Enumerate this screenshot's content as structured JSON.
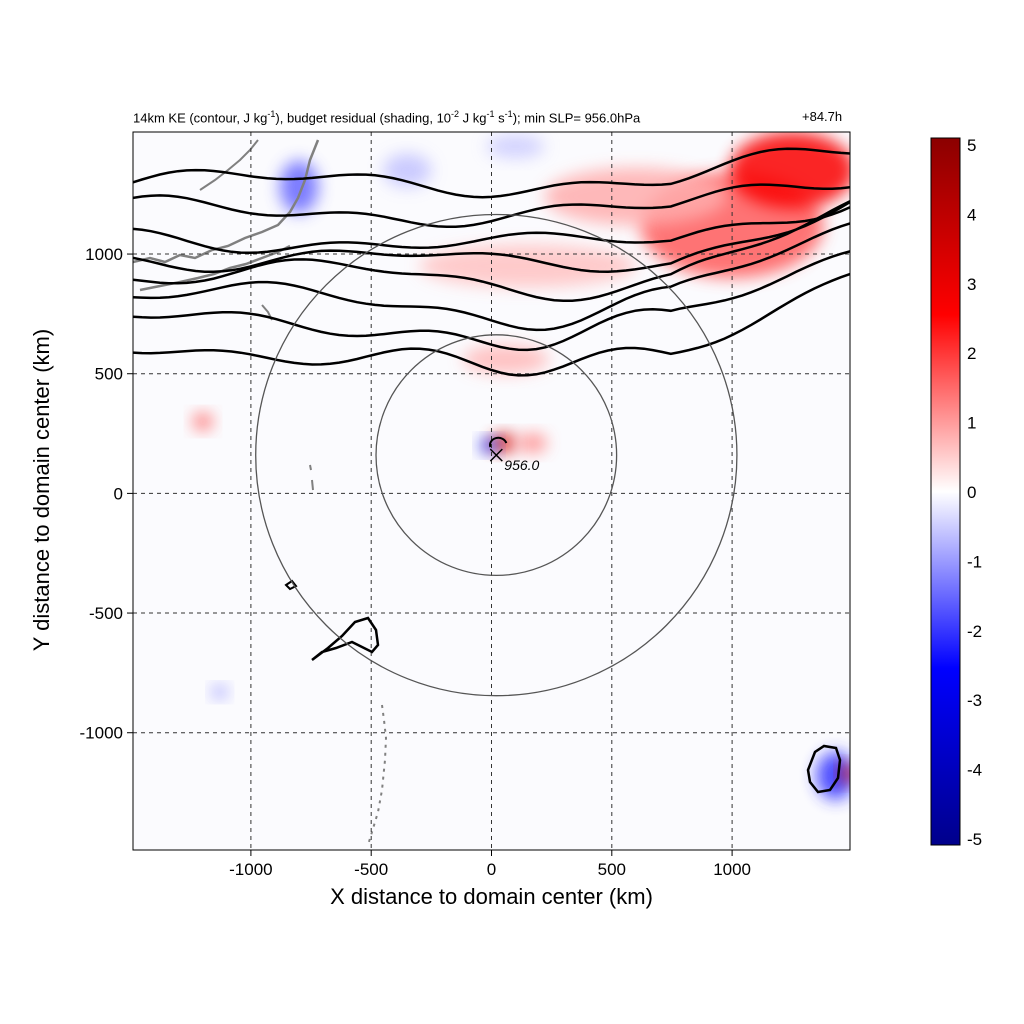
{
  "chart_data": {
    "type": "heatmap",
    "title_parts": {
      "p1": "14km KE (contour, J kg",
      "e1": "-1",
      "p2": "), budget residual (shading, 10",
      "e2": "-2",
      "p3": " J kg",
      "e3": "-1",
      "p4": " s",
      "e4": "-1",
      "p5": "); min SLP= 956.0hPa"
    },
    "time_label": "+84.7h",
    "xlabel": "X distance to domain center (km)",
    "ylabel": "Y distance to domain center (km)",
    "xlim": [
      -1490,
      1490
    ],
    "ylim": [
      -1490,
      1510
    ],
    "xticks": [
      -1000,
      -500,
      0,
      500,
      1000
    ],
    "yticks": [
      -1000,
      -500,
      0,
      500,
      1000
    ],
    "grid": "dashed",
    "colorbar": {
      "min": -5,
      "max": 5,
      "ticks": [
        5,
        4,
        3,
        2,
        1,
        0,
        -1,
        -2,
        -3,
        -4,
        -5
      ],
      "colors": [
        "#00008b",
        "#0000ff",
        "#ffffff",
        "#ff0000",
        "#8b0000"
      ]
    },
    "storm": {
      "center": [
        20,
        160
      ],
      "label": "956.0",
      "range_rings_km": [
        500,
        1000
      ]
    },
    "ke_contours_y": [
      1300,
      1180,
      1060,
      990,
      920,
      820,
      720,
      600
    ],
    "heat_patches": [
      {
        "x": 1000,
        "y": 1120,
        "rx": 380,
        "ry": 220,
        "v": 1.6
      },
      {
        "x": 1250,
        "y": 1350,
        "rx": 260,
        "ry": 160,
        "v": 2.6
      },
      {
        "x": 600,
        "y": 1240,
        "rx": 380,
        "ry": 120,
        "v": 0.8
      },
      {
        "x": 150,
        "y": 950,
        "rx": 450,
        "ry": 90,
        "v": 0.6
      },
      {
        "x": 60,
        "y": 560,
        "rx": 180,
        "ry": 60,
        "v": 0.7
      },
      {
        "x": -1200,
        "y": 300,
        "rx": 40,
        "ry": 35,
        "v": 1.6
      },
      {
        "x": -800,
        "y": 1280,
        "rx": 80,
        "ry": 110,
        "v": -1.5
      },
      {
        "x": -350,
        "y": 1350,
        "rx": 100,
        "ry": 70,
        "v": -0.6
      },
      {
        "x": 100,
        "y": 1450,
        "rx": 120,
        "ry": 50,
        "v": -0.5
      },
      {
        "x": 1430,
        "y": -1180,
        "rx": 80,
        "ry": 100,
        "v": -2.0
      },
      {
        "x": 1480,
        "y": -1170,
        "rx": 30,
        "ry": 40,
        "v": 3.5
      },
      {
        "x": -1130,
        "y": -830,
        "rx": 30,
        "ry": 25,
        "v": -1.2
      },
      {
        "x": 50,
        "y": 210,
        "rx": 50,
        "ry": 40,
        "v": 3.5
      },
      {
        "x": -10,
        "y": 200,
        "rx": 35,
        "ry": 30,
        "v": -3.0
      },
      {
        "x": 170,
        "y": 210,
        "rx": 60,
        "ry": 40,
        "v": 1.2
      }
    ]
  }
}
